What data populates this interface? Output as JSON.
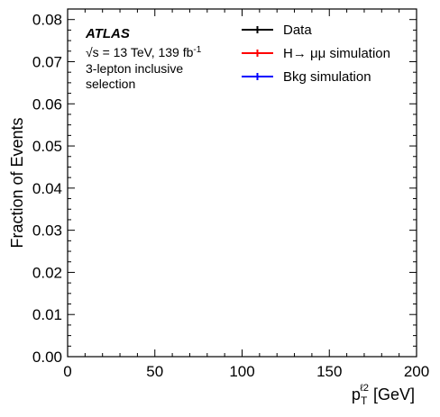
{
  "chart_data": {
    "type": "line",
    "title": "",
    "xlabel": "p",
    "xlabel_sub": "T",
    "xlabel_sup": "ℓ2",
    "xlabel_unit": "[GeV]",
    "ylabel": "Fraction of Events",
    "xlim": [
      0,
      200
    ],
    "ylim": [
      0,
      0.0825
    ],
    "xticks": [
      0,
      50,
      100,
      150,
      200
    ],
    "xtick_labels": [
      "0",
      "50",
      "100",
      "150",
      "200"
    ],
    "yticks": [
      0,
      0.01,
      0.02,
      0.03,
      0.04,
      0.05,
      0.06,
      0.07,
      0.08
    ],
    "ytick_labels": [
      "0.00",
      "0.01",
      "0.02",
      "0.03",
      "0.04",
      "0.05",
      "0.06",
      "0.07",
      "0.08"
    ],
    "grid": false,
    "legend_position": "top-right",
    "series": [
      {
        "name": "Data",
        "color": "#000000",
        "x": [],
        "y": []
      },
      {
        "name": "H→ μμ simulation",
        "color": "#ff0000",
        "x": [],
        "y": []
      },
      {
        "name": "Bkg simulation",
        "color": "#0000ff",
        "x": [],
        "y": []
      }
    ],
    "annotation": {
      "experiment": "ATLAS",
      "sqrt_s": "√s",
      "energy_lumi": "= 13 TeV, 139 fb",
      "lumi_exp": "-1",
      "selection_line1": "3-lepton inclusive",
      "selection_line2": "selection"
    }
  }
}
